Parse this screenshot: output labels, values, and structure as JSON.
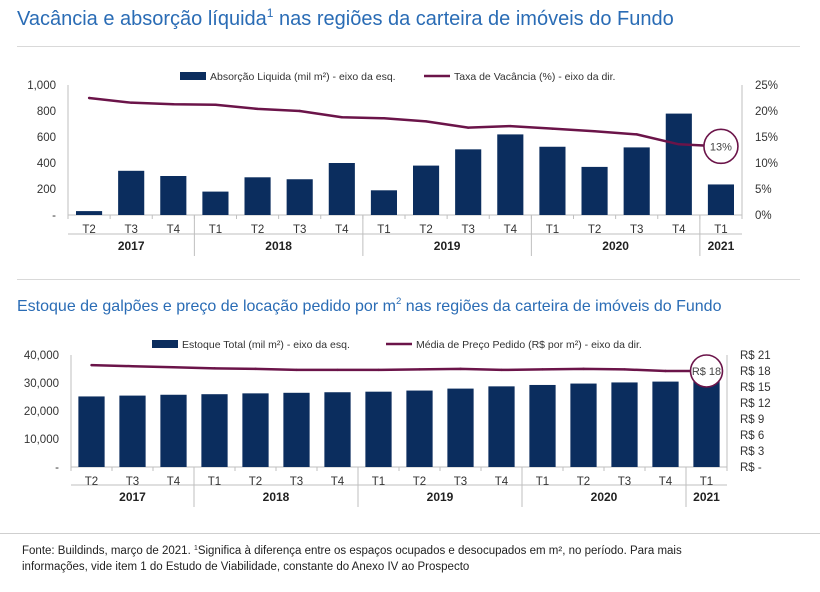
{
  "titles": {
    "top_main": "Vacância e absorção líquida",
    "top_sup": "1",
    "top_rest": " nas regiões da carteira de imóveis do Fundo",
    "bottom_main": "Estoque de galpões e preço de locação pedido por m",
    "bottom_sup": "2",
    "bottom_rest": " nas regiões da carteira de imóveis do Fundo"
  },
  "footnote": {
    "line1_a": "Fonte: Buildinds, março de 2021. ",
    "line1_sup": "1",
    "line1_b": "Significa à diferença entre os espaços ocupados e desocupados em m², no período. Para mais",
    "line2": "informações, vide item 1 do Estudo de Viabilidade, constante do Anexo IV ao Prospecto"
  },
  "colors": {
    "bar": "#0b2d5e",
    "line": "#6b1449",
    "axis": "#bfbfbf",
    "title": "#2a6cb5"
  },
  "chart_data": [
    {
      "type": "bar+line",
      "categories": [
        "T2",
        "T3",
        "T4",
        "T1",
        "T2",
        "T3",
        "T4",
        "T1",
        "T2",
        "T3",
        "T4",
        "T1",
        "T2",
        "T3",
        "T4",
        "T1"
      ],
      "years": [
        {
          "label": "2017",
          "from": 0,
          "to": 2
        },
        {
          "label": "2018",
          "from": 3,
          "to": 6
        },
        {
          "label": "2019",
          "from": 7,
          "to": 10
        },
        {
          "label": "2020",
          "from": 11,
          "to": 14
        },
        {
          "label": "2021",
          "from": 15,
          "to": 15
        }
      ],
      "series": [
        {
          "name": "Absorção Liquida (mil m²) - eixo da esq.",
          "type": "bar",
          "axis": "left",
          "values": [
            30,
            340,
            300,
            180,
            290,
            275,
            400,
            190,
            380,
            505,
            620,
            525,
            370,
            520,
            780,
            235
          ]
        },
        {
          "name": "Taxa de Vacância (%) - eixo da dir.",
          "type": "line",
          "axis": "right",
          "values": [
            22.5,
            21.6,
            21.3,
            21.2,
            20.4,
            20.0,
            18.8,
            18.6,
            18.0,
            16.8,
            17.1,
            16.6,
            16.1,
            15.5,
            13.6,
            13.2
          ]
        }
      ],
      "y_left": {
        "min": 0,
        "max": 1000,
        "ticks": [
          "-",
          "200",
          "400",
          "600",
          "800",
          "1,000"
        ]
      },
      "y_right": {
        "min": 0,
        "max": 25,
        "ticks": [
          "0%",
          "5%",
          "10%",
          "15%",
          "20%",
          "25%"
        ]
      },
      "annotation": {
        "text": "13%",
        "index": 15
      },
      "legend": "top"
    },
    {
      "type": "bar+line",
      "categories": [
        "T2",
        "T3",
        "T4",
        "T1",
        "T2",
        "T3",
        "T4",
        "T1",
        "T2",
        "T3",
        "T4",
        "T1",
        "T2",
        "T3",
        "T4",
        "T1"
      ],
      "years": [
        {
          "label": "2017",
          "from": 0,
          "to": 2
        },
        {
          "label": "2018",
          "from": 3,
          "to": 6
        },
        {
          "label": "2019",
          "from": 7,
          "to": 10
        },
        {
          "label": "2020",
          "from": 11,
          "to": 14
        },
        {
          "label": "2021",
          "from": 15,
          "to": 15
        }
      ],
      "series": [
        {
          "name": "Estoque Total (mil m²) - eixo da esq.",
          "type": "bar",
          "axis": "left",
          "values": [
            25200,
            25500,
            25800,
            26000,
            26300,
            26500,
            26700,
            26900,
            27300,
            28000,
            28800,
            29300,
            29800,
            30200,
            30500,
            31500
          ]
        },
        {
          "name": "Média de Preço Pedido (R$ por m²) - eixo da dir.",
          "type": "line",
          "axis": "right",
          "values": [
            19.1,
            18.9,
            18.7,
            18.5,
            18.4,
            18.2,
            18.2,
            18.2,
            18.3,
            18.4,
            18.2,
            18.3,
            18.4,
            18.3,
            18.0,
            18.0
          ]
        }
      ],
      "y_left": {
        "min": 0,
        "max": 40000,
        "ticks": [
          "-",
          "10,000",
          "20,000",
          "30,000",
          "40,000"
        ]
      },
      "y_right": {
        "min": 0,
        "max": 21,
        "ticks": [
          "R$ -",
          "R$ 3",
          "R$ 6",
          "R$ 9",
          "R$ 12",
          "R$ 15",
          "R$ 18",
          "R$ 21"
        ]
      },
      "annotation": {
        "text": "R$ 18",
        "index": 15
      },
      "legend": "top"
    }
  ]
}
